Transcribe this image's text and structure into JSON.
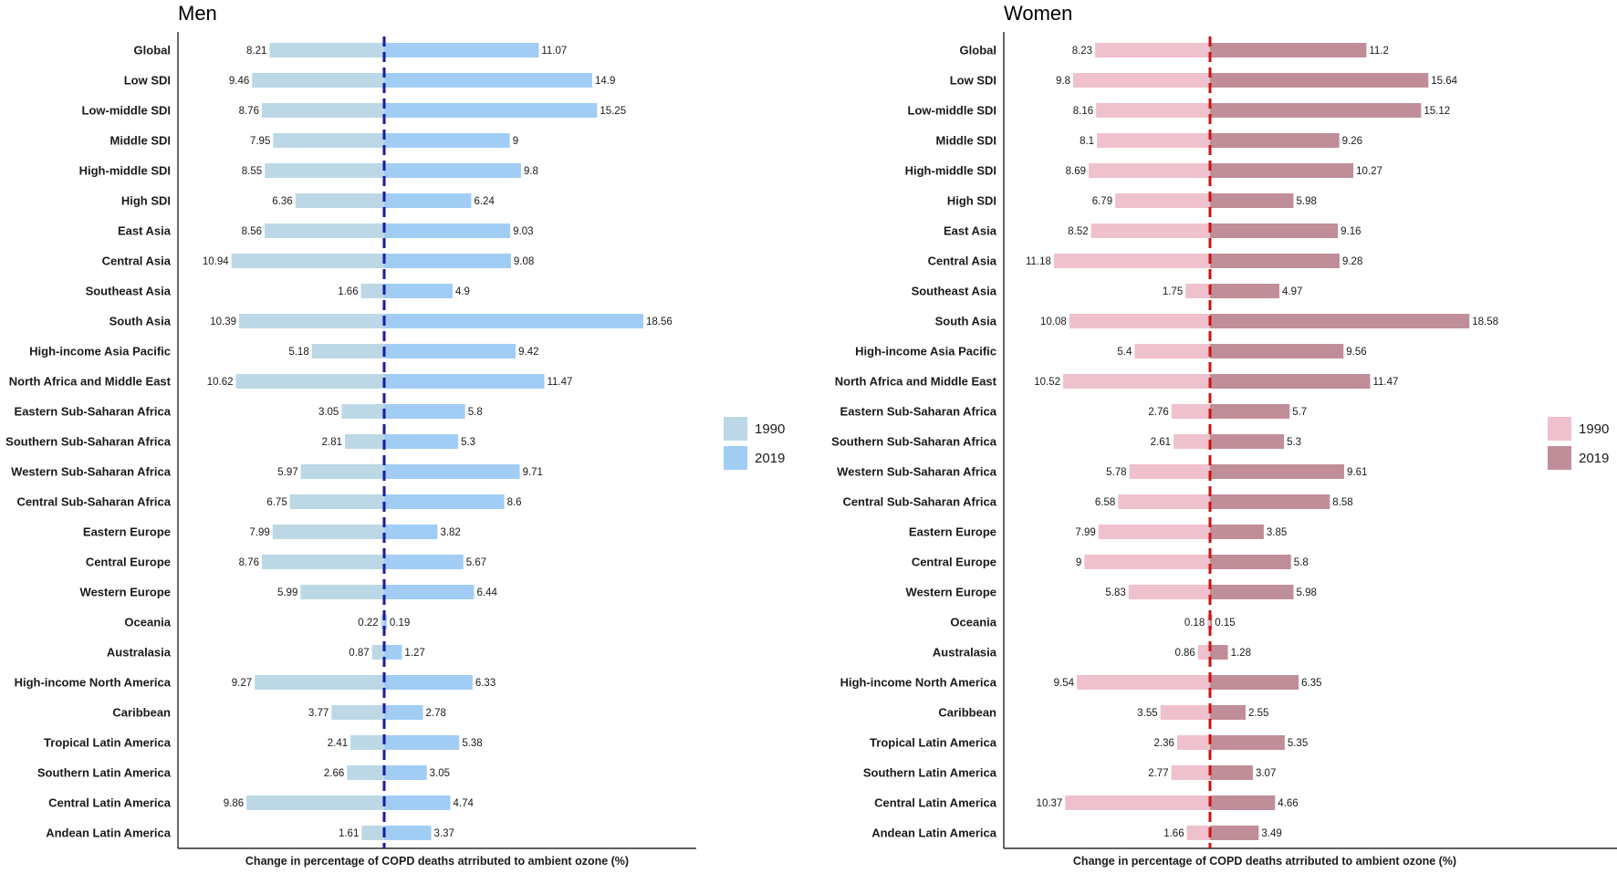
{
  "chart_data": [
    {
      "type": "bar",
      "orientation": "horizontal-diverging",
      "title": "Men",
      "xlabel": "Change in percentage of COPD deaths atrributed to ambient ozone (%)",
      "categories": [
        "Global",
        "Low SDI",
        "Low-middle SDI",
        "Middle SDI",
        "High-middle SDI",
        "High SDI",
        "East Asia",
        "Central Asia",
        "Southeast Asia",
        "South Asia",
        "High-income Asia Pacific",
        "North Africa and Middle East",
        "Eastern Sub-Saharan Africa",
        "Southern Sub-Saharan Africa",
        "Western Sub-Saharan Africa",
        "Central Sub-Saharan Africa",
        "Eastern Europe",
        "Central Europe",
        "Western Europe",
        "Oceania",
        "Australasia",
        "High-income North America",
        "Caribbean",
        "Tropical Latin America",
        "Southern Latin America",
        "Central Latin America",
        "Andean Latin America"
      ],
      "series": [
        {
          "name": "1990",
          "side": "left",
          "color": "#bcd8e6",
          "values": [
            8.21,
            9.46,
            8.76,
            7.95,
            8.55,
            6.36,
            8.56,
            10.94,
            1.66,
            10.39,
            5.18,
            10.62,
            3.05,
            2.81,
            5.97,
            6.75,
            7.99,
            8.76,
            5.99,
            0.22,
            0.87,
            9.27,
            3.77,
            2.41,
            2.66,
            9.86,
            1.61
          ]
        },
        {
          "name": "2019",
          "side": "right",
          "color": "#a1cdf4",
          "values": [
            11.07,
            14.9,
            15.25,
            9,
            9.8,
            6.24,
            9.03,
            9.08,
            4.9,
            18.56,
            9.42,
            11.47,
            5.8,
            5.3,
            9.71,
            8.6,
            3.82,
            5.67,
            6.44,
            0.19,
            1.27,
            6.33,
            2.78,
            5.38,
            3.05,
            4.74,
            3.37
          ]
        }
      ],
      "center_line_color": "#1a1aa6",
      "legend_position": "right",
      "grid": false
    },
    {
      "type": "bar",
      "orientation": "horizontal-diverging",
      "title": "Women",
      "xlabel": "Change in percentage of COPD deaths atrributed to ambient ozone (%)",
      "categories": [
        "Global",
        "Low SDI",
        "Low-middle SDI",
        "Middle SDI",
        "High-middle SDI",
        "High SDI",
        "East Asia",
        "Central Asia",
        "Southeast Asia",
        "South Asia",
        "High-income Asia Pacific",
        "North Africa and Middle East",
        "Eastern Sub-Saharan Africa",
        "Southern Sub-Saharan Africa",
        "Western Sub-Saharan Africa",
        "Central Sub-Saharan Africa",
        "Eastern Europe",
        "Central Europe",
        "Western Europe",
        "Oceania",
        "Australasia",
        "High-income North America",
        "Caribbean",
        "Tropical Latin America",
        "Southern Latin America",
        "Central Latin America",
        "Andean Latin America"
      ],
      "series": [
        {
          "name": "1990",
          "side": "left",
          "color": "#efc1cc",
          "values": [
            8.23,
            9.8,
            8.16,
            8.1,
            8.69,
            6.79,
            8.52,
            11.18,
            1.75,
            10.08,
            5.4,
            10.52,
            2.76,
            2.61,
            5.78,
            6.58,
            7.99,
            9,
            5.83,
            0.18,
            0.86,
            9.54,
            3.55,
            2.36,
            2.77,
            10.37,
            1.66
          ]
        },
        {
          "name": "2019",
          "side": "right",
          "color": "#c08e98",
          "values": [
            11.2,
            15.64,
            15.12,
            9.26,
            10.27,
            5.98,
            9.16,
            9.28,
            4.97,
            18.58,
            9.56,
            11.47,
            5.7,
            5.3,
            9.61,
            8.58,
            3.85,
            5.8,
            5.98,
            0.15,
            1.28,
            6.35,
            2.55,
            5.35,
            3.07,
            4.66,
            3.49
          ]
        }
      ],
      "center_line_color": "#cc1111",
      "legend_position": "right",
      "grid": false
    }
  ]
}
